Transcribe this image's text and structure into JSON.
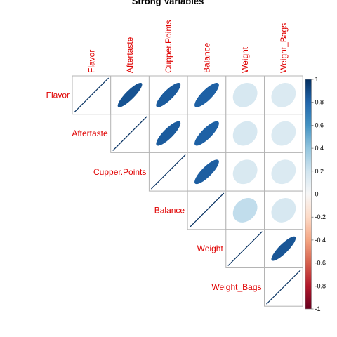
{
  "chart_data": {
    "type": "heatmap",
    "subtype": "correlation-matrix-upper-ellipse",
    "title": "Strong Variables",
    "variables": [
      "Flavor",
      "Aftertaste",
      "Cupper.Points",
      "Balance",
      "Weight",
      "Weight_Bags"
    ],
    "matrix": [
      [
        1.0,
        0.87,
        0.84,
        0.82,
        0.17,
        0.15
      ],
      [
        0.87,
        1.0,
        0.84,
        0.82,
        0.17,
        0.15
      ],
      [
        0.84,
        0.84,
        1.0,
        0.83,
        0.16,
        0.15
      ],
      [
        0.82,
        0.82,
        0.83,
        1.0,
        0.25,
        0.17
      ],
      [
        0.17,
        0.17,
        0.16,
        0.25,
        1.0,
        0.86
      ],
      [
        0.15,
        0.15,
        0.15,
        0.17,
        0.86,
        1.0
      ]
    ],
    "colorbar": {
      "range": [
        -1,
        1
      ],
      "ticks": [
        "1",
        "0.8",
        "0.6",
        "0.4",
        "0.2",
        "0",
        "-0.2",
        "-0.4",
        "-0.6",
        "-0.8",
        "-1"
      ],
      "tick_values": [
        1,
        0.8,
        0.6,
        0.4,
        0.2,
        0,
        -0.2,
        -0.4,
        -0.6,
        -0.8,
        -1
      ],
      "low_color": "#67001f",
      "mid_color": "#f7f7f7",
      "high_color": "#053061",
      "position": "right"
    },
    "label_color": "#e00000",
    "grid": true
  }
}
